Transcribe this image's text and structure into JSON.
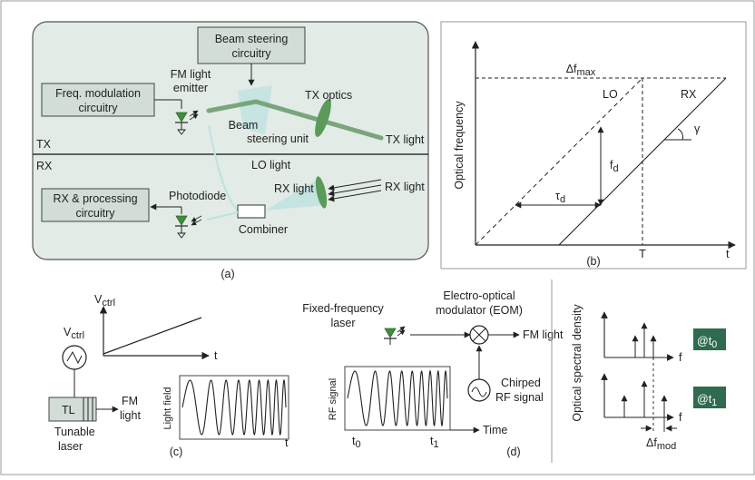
{
  "panel_a": {
    "caption": "(a)",
    "tx_section": "TX",
    "rx_section": "RX",
    "beam_steering_circuitry": [
      "Beam steering",
      "circuitry"
    ],
    "freq_mod_circuitry": [
      "Freq. modulation",
      "circuitry"
    ],
    "fm_light_emitter": [
      "FM light",
      "emitter"
    ],
    "beam_steering_unit": [
      "Beam",
      "steering unit"
    ],
    "tx_optics": "TX optics",
    "tx_light": "TX light",
    "lo_light": "LO light",
    "rx_light_inner": "RX light",
    "rx_light_outer": "RX light",
    "rx_processing_circuitry": [
      "RX & processing",
      "circuitry"
    ],
    "photodiode": "Photodiode",
    "combiner": "Combiner"
  },
  "panel_b": {
    "caption": "(b)",
    "delta_f_max": "Δf",
    "delta_f_max_sub": "max",
    "lo_label": "LO",
    "rx_label": "RX",
    "gamma": "γ",
    "fd": "f",
    "fd_sub": "d",
    "tau_d": "τ",
    "tau_d_sub": "d",
    "y_axis_label": "Optical frequency",
    "t_tick": "T",
    "t_axis": "t"
  },
  "panel_c": {
    "caption": "(c)",
    "vctrl_axis": "V",
    "vctrl_axis_sub": "ctrl",
    "vctrl_source": "V",
    "vctrl_source_sub": "ctrl",
    "t_axis_top": "t",
    "tl_box": "TL",
    "tunable_laser": [
      "Tunable",
      "laser"
    ],
    "fm_light": [
      "FM",
      "light"
    ],
    "light_field": "Light field",
    "t_axis_bottom": "t"
  },
  "panel_d": {
    "caption": "(d)",
    "fixed_laser": [
      "Fixed-frequency",
      "laser"
    ],
    "eom": [
      "Electro-optical",
      "modulator (EOM)"
    ],
    "fm_light": "FM light",
    "chirped_rf": [
      "Chirped",
      "RF signal"
    ],
    "rf_signal": "RF signal",
    "time_axis": "Time",
    "t0": "t",
    "t0_sub": "0",
    "t1": "t",
    "t1_sub": "1"
  },
  "panel_e": {
    "y_axis_label": "Optical spectral density",
    "at_t0": "@t",
    "at_t0_sub": "0",
    "at_t1": "@t",
    "at_t1_sub": "1",
    "f_top": "f",
    "f_bottom": "f",
    "delta_f_mod": "Δf",
    "delta_f_mod_sub": "mod"
  },
  "colors": {
    "panel_fill": "#e3ebe6",
    "box_fill": "#d2ddd6",
    "beam_green": "#7aa57c",
    "cone_cyan": "#bfe3e0",
    "diode_green": "#3e8e3e",
    "tag_fill": "#2f6b4f"
  }
}
